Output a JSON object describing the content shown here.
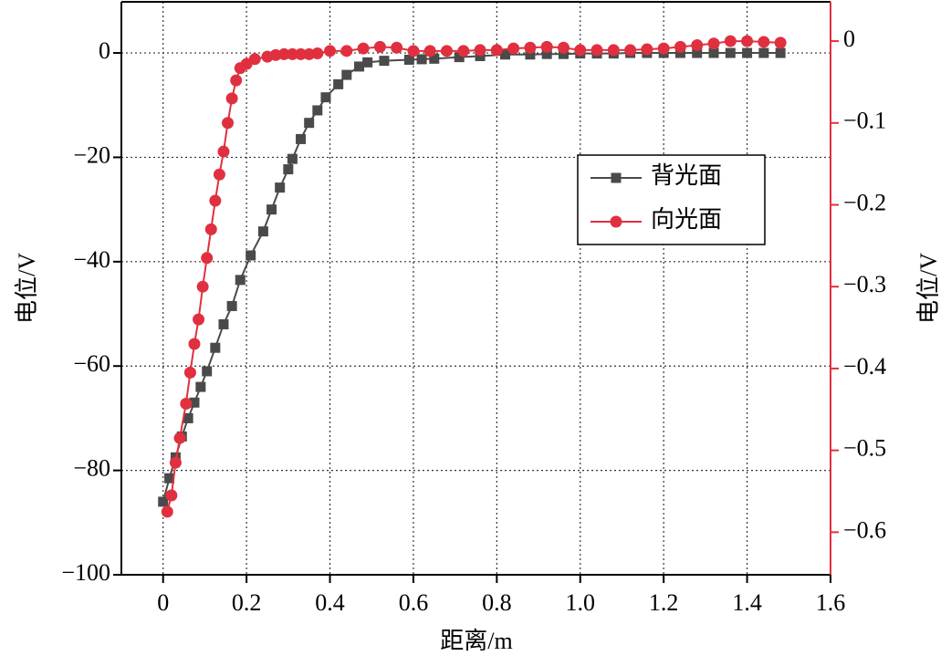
{
  "chart_data": {
    "type": "line",
    "xlabel": "距离/m",
    "ylabel": "电位/V",
    "y2label": "电位/V",
    "xlim": [
      -0.1,
      1.6
    ],
    "xticks": [
      0,
      0.2,
      0.4,
      0.6,
      0.8,
      {
        "value": 1,
        "label": "1.0"
      },
      1.2,
      1.4,
      1.6
    ],
    "ylim": [
      -100,
      9.8
    ],
    "yticks": [
      {
        "value": -100,
        "label": "−100"
      },
      {
        "value": -80,
        "label": "−80"
      },
      {
        "value": -60,
        "label": "−60"
      },
      {
        "value": -40,
        "label": "−40"
      },
      {
        "value": -20,
        "label": "−20"
      },
      0
    ],
    "y2lim": [
      -0.652,
      0.048
    ],
    "y2ticks": [
      {
        "value": -0.6,
        "label": "−0.6"
      },
      {
        "value": -0.5,
        "label": "−0.5"
      },
      {
        "value": -0.4,
        "label": "−0.4"
      },
      {
        "value": -0.3,
        "label": "−0.3"
      },
      {
        "value": -0.2,
        "label": "−0.2"
      },
      {
        "value": -0.1,
        "label": "−0.1"
      },
      0
    ],
    "grid": true,
    "legend": "upper right",
    "y2color": "#e0303f",
    "series": [
      {
        "name": "背光面",
        "color": "#4a4a4a",
        "marker": "square",
        "x": [
          0,
          0.015,
          0.03,
          0.045,
          0.06,
          0.075,
          0.09,
          0.105,
          0.125,
          0.145,
          0.165,
          0.185,
          0.21,
          0.24,
          0.26,
          0.28,
          0.3,
          0.31,
          0.33,
          0.35,
          0.37,
          0.39,
          0.42,
          0.44,
          0.47,
          0.49,
          0.53,
          0.59,
          0.62,
          0.65,
          0.71,
          0.76,
          0.82,
          0.88,
          0.92,
          0.96,
          1.0,
          1.04,
          1.08,
          1.12,
          1.16,
          1.2,
          1.24,
          1.28,
          1.32,
          1.36,
          1.4,
          1.44,
          1.48
        ],
        "values": [
          -86,
          -81.5,
          -77.5,
          -73.5,
          -70,
          -67,
          -64,
          -61,
          -56.5,
          -52,
          -48.5,
          -43.5,
          -38.8,
          -34.2,
          -30,
          -25.8,
          -22.3,
          -20.3,
          -16.5,
          -13.4,
          -11,
          -8.5,
          -6,
          -4.2,
          -2.6,
          -1.8,
          -1.5,
          -1.3,
          -1.2,
          -1.1,
          -0.8,
          -0.6,
          -0.3,
          -0.3,
          -0.2,
          -0.2,
          -0.1,
          -0.1,
          -0.1,
          0,
          0,
          0,
          0,
          0,
          0,
          0,
          0,
          0,
          0
        ]
      },
      {
        "name": "向光面",
        "color": "#e0303f",
        "marker": "circle",
        "axis": "y2",
        "x": [
          0.01,
          0.02,
          0.03,
          0.04,
          0.055,
          0.065,
          0.075,
          0.085,
          0.095,
          0.105,
          0.115,
          0.125,
          0.135,
          0.145,
          0.155,
          0.165,
          0.175,
          0.185,
          0.2,
          0.22,
          0.25,
          0.27,
          0.29,
          0.31,
          0.33,
          0.35,
          0.37,
          0.4,
          0.44,
          0.48,
          0.52,
          0.56,
          0.6,
          0.64,
          0.68,
          0.72,
          0.76,
          0.8,
          0.84,
          0.88,
          0.92,
          0.96,
          1.0,
          1.04,
          1.08,
          1.12,
          1.16,
          1.2,
          1.24,
          1.28,
          1.32,
          1.36,
          1.4,
          1.44,
          1.48
        ],
        "values": [
          -0.575,
          -0.555,
          -0.515,
          -0.485,
          -0.443,
          -0.405,
          -0.37,
          -0.34,
          -0.3,
          -0.265,
          -0.23,
          -0.195,
          -0.163,
          -0.135,
          -0.1,
          -0.07,
          -0.048,
          -0.033,
          -0.028,
          -0.022,
          -0.019,
          -0.017,
          -0.016,
          -0.016,
          -0.016,
          -0.016,
          -0.015,
          -0.012,
          -0.012,
          -0.009,
          -0.007,
          -0.008,
          -0.012,
          -0.012,
          -0.012,
          -0.012,
          -0.011,
          -0.011,
          -0.009,
          -0.008,
          -0.007,
          -0.008,
          -0.011,
          -0.011,
          -0.011,
          -0.011,
          -0.01,
          -0.009,
          -0.007,
          -0.005,
          -0.003,
          0,
          0,
          -0.001,
          -0.002
        ]
      }
    ]
  }
}
